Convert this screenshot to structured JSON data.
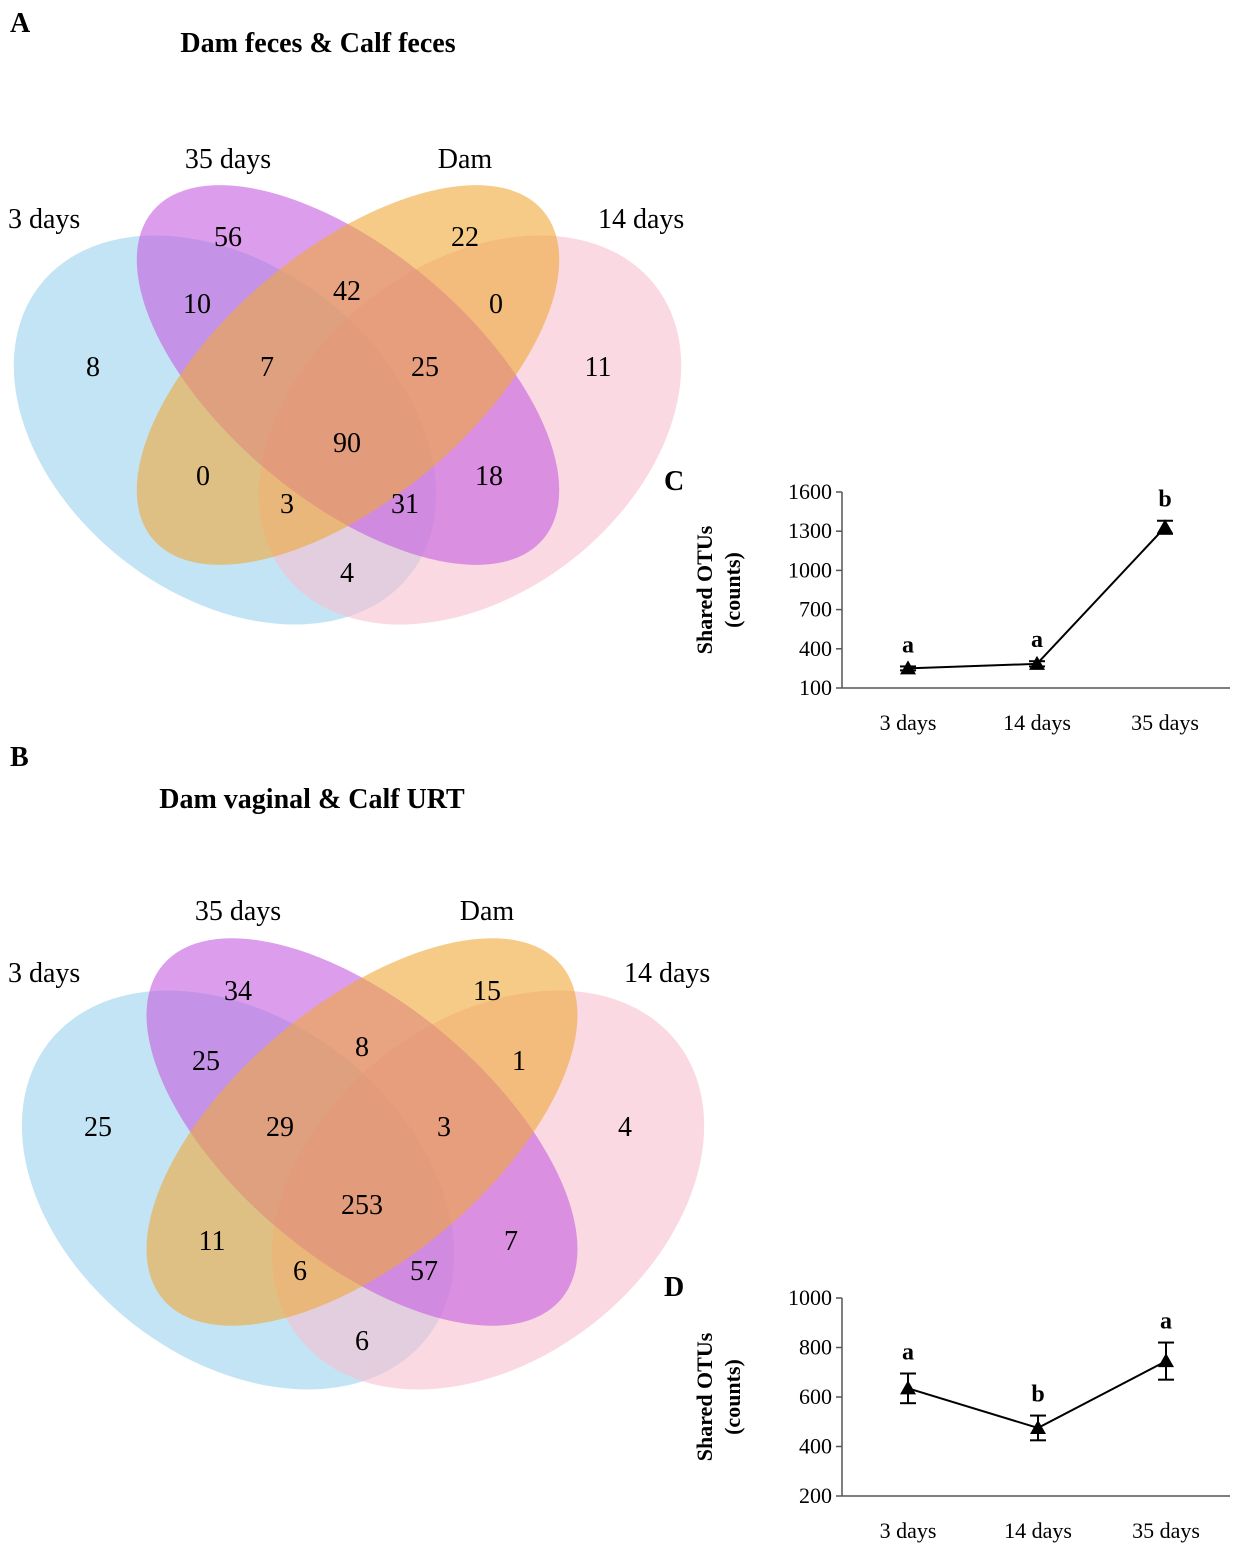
{
  "panels": {
    "A": {
      "letter": "A",
      "title": "Dam feces & Calf feces",
      "set_labels": [
        "3 days",
        "35 days",
        "Dam",
        "14 days"
      ],
      "counts": [
        "8",
        "56",
        "22",
        "11",
        "10",
        "42",
        "0",
        "7",
        "25",
        "90",
        "0",
        "3",
        "31",
        "18",
        "4"
      ]
    },
    "B": {
      "letter": "B",
      "title": "Dam vaginal & Calf URT",
      "set_labels": [
        "3 days",
        "35 days",
        "Dam",
        "14 days"
      ],
      "counts": [
        "25",
        "34",
        "15",
        "4",
        "25",
        "8",
        "1",
        "29",
        "3",
        "253",
        "11",
        "6",
        "57",
        "7",
        "6"
      ]
    },
    "C": {
      "letter": "C"
    },
    "D": {
      "letter": "D"
    }
  },
  "venn_colors": {
    "3 days": "#a9d8ef",
    "35 days": "#c55de0",
    "Dam": "#f0a838",
    "14 days": "#f6bfcf"
  },
  "chart_data": [
    {
      "panel": "C",
      "type": "line",
      "categories": [
        "3 days",
        "14 days",
        "35 days"
      ],
      "values": [
        250,
        285,
        1330
      ],
      "errors": [
        15,
        20,
        50
      ],
      "sig_letters": [
        "a",
        "a",
        "b"
      ],
      "ylabel": "Shared OTUs (counts)",
      "yticks": [
        100,
        400,
        700,
        1000,
        1300,
        1600
      ],
      "ylim": [
        100,
        1600
      ],
      "marker": "triangle",
      "grid": false
    },
    {
      "panel": "D",
      "type": "line",
      "categories": [
        "3 days",
        "14 days",
        "35 days"
      ],
      "values": [
        635,
        475,
        745
      ],
      "errors": [
        60,
        50,
        75
      ],
      "sig_letters": [
        "a",
        "b",
        "a"
      ],
      "ylabel": "Shared OTUs (counts)",
      "yticks": [
        200,
        400,
        600,
        800,
        1000
      ],
      "ylim": [
        200,
        1000
      ],
      "marker": "triangle",
      "grid": false
    }
  ]
}
